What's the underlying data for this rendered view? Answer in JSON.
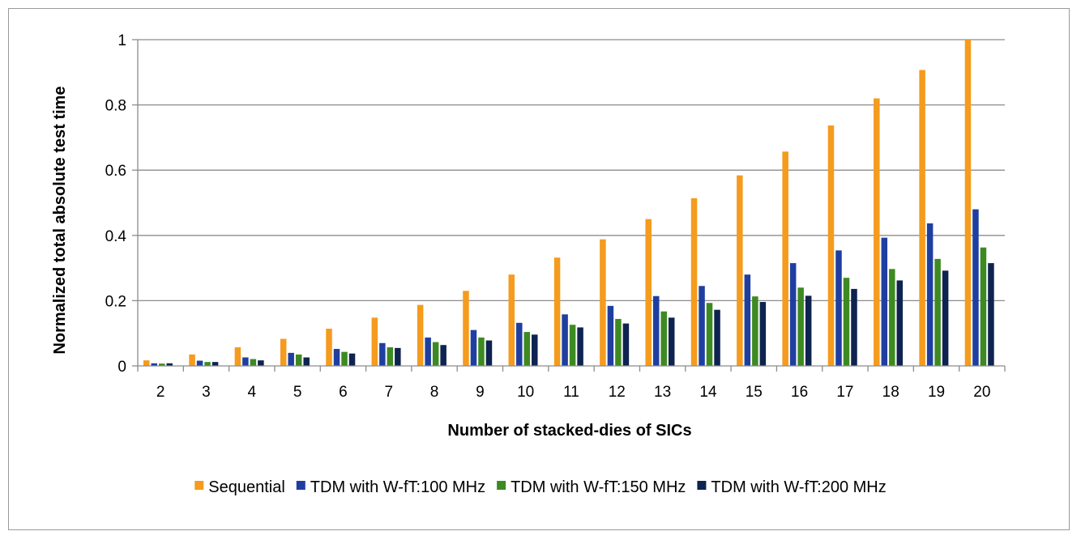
{
  "chart_data": {
    "type": "bar",
    "xlabel": "Number of stacked-dies of SICs",
    "ylabel": "Normalized total absolute test time",
    "ylim": [
      0,
      1
    ],
    "yticks": [
      "0",
      "0.2",
      "0.4",
      "0.6",
      "0.8",
      "1"
    ],
    "grid": "horizontal",
    "legend_position": "bottom",
    "categories": [
      "2",
      "3",
      "4",
      "5",
      "6",
      "7",
      "8",
      "9",
      "10",
      "11",
      "12",
      "13",
      "14",
      "15",
      "16",
      "17",
      "18",
      "19",
      "20"
    ],
    "series": [
      {
        "name": "Sequential",
        "color": "#F59B1D",
        "values": [
          0.017,
          0.035,
          0.057,
          0.083,
          0.114,
          0.148,
          0.187,
          0.23,
          0.28,
          0.332,
          0.388,
          0.45,
          0.514,
          0.584,
          0.657,
          0.737,
          0.82,
          0.907,
          1.0
        ]
      },
      {
        "name": "TDM with W-fT:100 MHz",
        "color": "#1F3FA0",
        "values": [
          0.008,
          0.016,
          0.026,
          0.04,
          0.052,
          0.07,
          0.087,
          0.11,
          0.132,
          0.158,
          0.184,
          0.214,
          0.245,
          0.28,
          0.315,
          0.354,
          0.393,
          0.437,
          0.48
        ]
      },
      {
        "name": "TDM with W-fT:150 MHz",
        "color": "#3E8A22",
        "values": [
          0.007,
          0.012,
          0.021,
          0.035,
          0.043,
          0.057,
          0.073,
          0.087,
          0.104,
          0.126,
          0.144,
          0.167,
          0.193,
          0.213,
          0.24,
          0.27,
          0.297,
          0.328,
          0.363
        ]
      },
      {
        "name": "TDM with W-fT:200 MHz",
        "color": "#0F2350",
        "values": [
          0.008,
          0.012,
          0.017,
          0.026,
          0.038,
          0.055,
          0.064,
          0.078,
          0.096,
          0.118,
          0.13,
          0.148,
          0.172,
          0.196,
          0.215,
          0.236,
          0.262,
          0.292,
          0.315
        ]
      }
    ]
  }
}
